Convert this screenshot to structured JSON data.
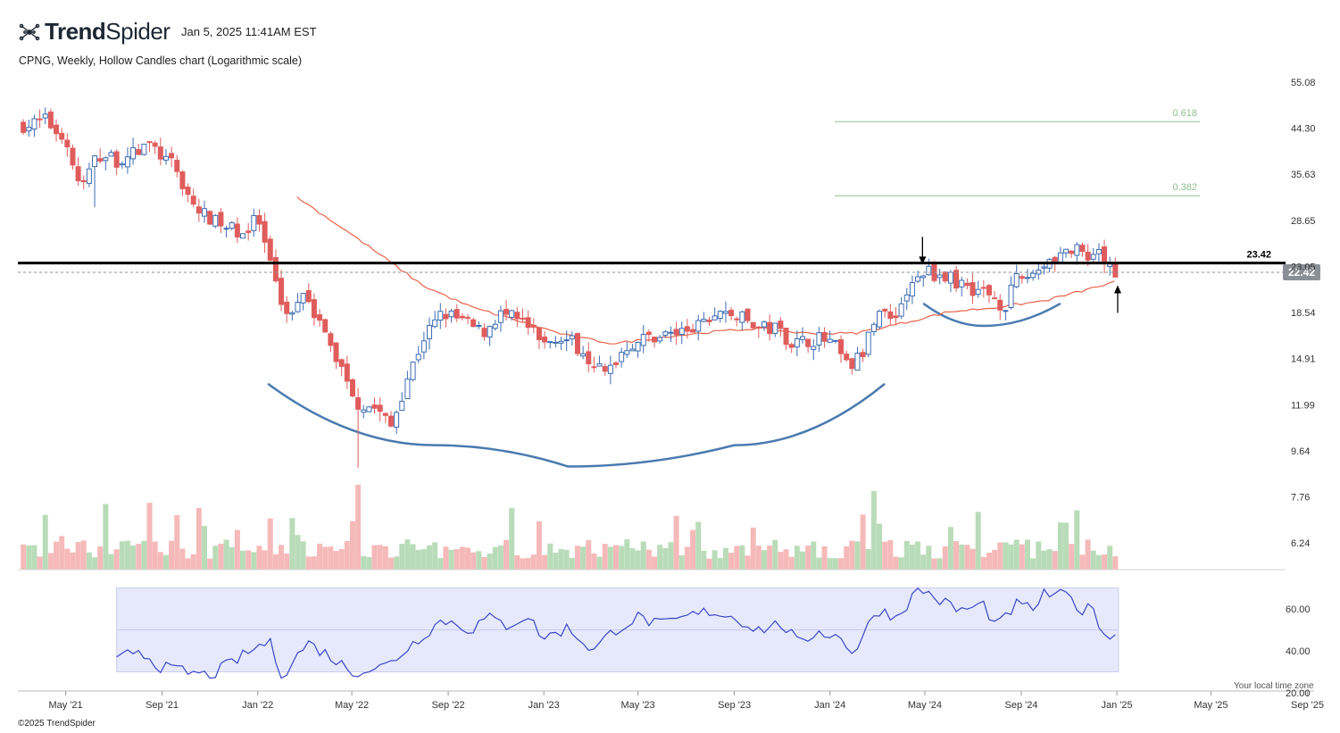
{
  "header": {
    "brand_bold": "Trend",
    "brand_light": "Spider",
    "timestamp": "Jan 5, 2025 11:41AM EST",
    "subtitle": "CPNG, Weekly, Hollow Candles chart (Logarithmic scale)",
    "copyright": "©2025 TrendSpider",
    "timezone_note": "Your local time zone"
  },
  "colors": {
    "up": "#3d6bb3",
    "down": "#e05c5c",
    "vol_up": "#b9dcb8",
    "vol_down": "#f6b9b9",
    "ma": "#e8634a",
    "resistance": "#000000",
    "curve": "#4a7ab0",
    "rsi_line": "#3b46c8",
    "rsi_band": "#e6e9fb",
    "fib": "#8fbf8f",
    "price_badge": "#8a8f96"
  },
  "chart_data": [
    {
      "type": "candlestick",
      "scale": "log",
      "title": "CPNG, Weekly, Hollow Candles chart (Logarithmic scale)",
      "y_ticks": [
        55.08,
        44.3,
        35.63,
        28.65,
        23.05,
        18.54,
        14.91,
        11.99,
        9.64,
        7.76,
        6.24
      ],
      "x_ticks": [
        "May '21",
        "Sep '21",
        "Jan '22",
        "May '22",
        "Sep '22",
        "Jan '23",
        "May '23",
        "Sep '23",
        "Jan '24",
        "May '24",
        "Sep '24",
        "Jan '25",
        "May '25",
        "Sep '25"
      ],
      "last_price": "22.42",
      "resistance": {
        "label": "23.42",
        "value": 23.42
      },
      "fib_levels": [
        {
          "label": "0.618",
          "value": 45.7
        },
        {
          "label": "0.382",
          "value": 32.2
        }
      ],
      "close_path": [
        [
          "2021-03-15",
          45
        ],
        [
          "2021-04-05",
          46
        ],
        [
          "2021-05-01",
          42
        ],
        [
          "2021-05-20",
          33
        ],
        [
          "2021-06-10",
          39
        ],
        [
          "2021-07-10",
          38
        ],
        [
          "2021-08-15",
          41
        ],
        [
          "2021-09-15",
          37
        ],
        [
          "2021-10-15",
          30
        ],
        [
          "2021-11-15",
          28
        ],
        [
          "2021-12-15",
          27
        ],
        [
          "2022-01-01",
          29
        ],
        [
          "2022-01-20",
          22
        ],
        [
          "2022-02-10",
          18
        ],
        [
          "2022-03-01",
          21
        ],
        [
          "2022-03-25",
          17
        ],
        [
          "2022-04-20",
          14
        ],
        [
          "2022-05-10",
          12
        ],
        [
          "2022-06-01",
          11.8
        ],
        [
          "2022-06-20",
          10.8
        ],
        [
          "2022-07-10",
          13.5
        ],
        [
          "2022-08-01",
          16.5
        ],
        [
          "2022-08-25",
          18.5
        ],
        [
          "2022-09-20",
          17.8
        ],
        [
          "2022-10-15",
          16.8
        ],
        [
          "2022-11-05",
          18.4
        ],
        [
          "2022-12-05",
          17.8
        ],
        [
          "2023-01-01",
          15.8
        ],
        [
          "2023-01-20",
          16.8
        ],
        [
          "2023-02-20",
          15.5
        ],
        [
          "2023-03-20",
          13.8
        ],
        [
          "2023-04-15",
          15.8
        ],
        [
          "2023-05-15",
          16.5
        ],
        [
          "2023-06-15",
          16.8
        ],
        [
          "2023-07-15",
          17.2
        ],
        [
          "2023-08-10",
          18.5
        ],
        [
          "2023-09-05",
          18.3
        ],
        [
          "2023-10-01",
          17.2
        ],
        [
          "2023-10-25",
          17.2
        ],
        [
          "2023-11-15",
          16.0
        ],
        [
          "2023-12-15",
          16.4
        ],
        [
          "2024-01-05",
          16.0
        ],
        [
          "2024-01-25",
          14.2
        ],
        [
          "2024-02-15",
          15.5
        ],
        [
          "2024-03-01",
          19.0
        ],
        [
          "2024-03-20",
          18.0
        ],
        [
          "2024-04-10",
          20.5
        ],
        [
          "2024-04-30",
          22.6
        ],
        [
          "2024-05-20",
          22.2
        ],
        [
          "2024-06-10",
          21.5
        ],
        [
          "2024-07-01",
          20.8
        ],
        [
          "2024-07-25",
          20.2
        ],
        [
          "2024-08-10",
          19.0
        ],
        [
          "2024-08-25",
          21.5
        ],
        [
          "2024-09-15",
          22.3
        ],
        [
          "2024-10-01",
          23.5
        ],
        [
          "2024-10-20",
          24.5
        ],
        [
          "2024-11-10",
          24.8
        ],
        [
          "2024-11-25",
          23.5
        ],
        [
          "2024-12-10",
          24.2
        ],
        [
          "2024-12-25",
          22.6
        ],
        [
          "2025-01-03",
          22.42
        ]
      ],
      "moving_average_path": [
        [
          "2022-02-20",
          32.0
        ],
        [
          "2022-05-01",
          26.8
        ],
        [
          "2022-08-01",
          21.0
        ],
        [
          "2022-10-01",
          19.0
        ],
        [
          "2022-12-01",
          17.8
        ],
        [
          "2023-02-01",
          16.6
        ],
        [
          "2023-04-01",
          16.0
        ],
        [
          "2023-06-01",
          16.5
        ],
        [
          "2023-08-01",
          16.9
        ],
        [
          "2023-10-01",
          17.2
        ],
        [
          "2023-12-01",
          16.8
        ],
        [
          "2024-02-01",
          16.8
        ],
        [
          "2024-04-01",
          17.6
        ],
        [
          "2024-06-01",
          18.6
        ],
        [
          "2024-08-01",
          19.0
        ],
        [
          "2024-10-01",
          19.6
        ],
        [
          "2024-12-01",
          20.8
        ],
        [
          "2025-01-03",
          21.5
        ]
      ],
      "volume_note": "volume bars colored by candle direction",
      "annotations": [
        {
          "type": "arrow-down",
          "date": "2024-04-28",
          "value": 26.5
        },
        {
          "type": "arrow-up",
          "date": "2025-01-02",
          "value": 18.5
        },
        {
          "type": "rounding-bottom-curve",
          "path": [
            [
              "2022-01-15",
              13.2
            ],
            [
              "2022-08-15",
              9.9
            ],
            [
              "2023-02-01",
              8.95
            ],
            [
              "2023-09-01",
              9.9
            ],
            [
              "2024-03-10",
              13.2
            ]
          ]
        },
        {
          "type": "rounding-bottom-curve",
          "path": [
            [
              "2024-04-30",
              19.3
            ],
            [
              "2024-07-15",
              17.4
            ],
            [
              "2024-10-20",
              19.3
            ]
          ]
        }
      ]
    },
    {
      "type": "line",
      "name": "RSI",
      "y_ticks": [
        60.0,
        40.0,
        20.0
      ],
      "band": [
        30,
        70
      ],
      "rsi_path": [
        [
          "2021-07-05",
          35
        ],
        [
          "2021-08-01",
          41
        ],
        [
          "2021-09-01",
          32
        ],
        [
          "2021-10-01",
          30
        ],
        [
          "2021-11-01",
          28
        ],
        [
          "2021-12-15",
          38
        ],
        [
          "2022-01-15",
          45
        ],
        [
          "2022-02-01",
          28
        ],
        [
          "2022-03-05",
          44
        ],
        [
          "2022-04-01",
          38
        ],
        [
          "2022-05-01",
          30
        ],
        [
          "2022-06-15",
          33
        ],
        [
          "2022-08-01",
          48
        ],
        [
          "2022-08-25",
          55
        ],
        [
          "2022-10-01",
          50
        ],
        [
          "2022-10-20",
          56
        ],
        [
          "2022-11-15",
          52
        ],
        [
          "2022-12-10",
          57
        ],
        [
          "2023-01-01",
          46
        ],
        [
          "2023-02-01",
          51
        ],
        [
          "2023-03-05",
          40
        ],
        [
          "2023-04-01",
          50
        ],
        [
          "2023-05-01",
          56
        ],
        [
          "2023-06-01",
          52
        ],
        [
          "2023-07-01",
          56
        ],
        [
          "2023-08-01",
          59
        ],
        [
          "2023-09-01",
          56
        ],
        [
          "2023-10-01",
          50
        ],
        [
          "2023-11-01",
          53
        ],
        [
          "2023-11-25",
          42
        ],
        [
          "2023-12-15",
          50
        ],
        [
          "2024-01-15",
          46
        ],
        [
          "2024-02-01",
          39
        ],
        [
          "2024-03-01",
          60
        ],
        [
          "2024-03-25",
          56
        ],
        [
          "2024-04-25",
          70
        ],
        [
          "2024-05-15",
          65
        ],
        [
          "2024-06-15",
          59
        ],
        [
          "2024-07-15",
          62
        ],
        [
          "2024-08-01",
          51
        ],
        [
          "2024-08-25",
          62
        ],
        [
          "2024-09-15",
          60
        ],
        [
          "2024-10-01",
          67
        ],
        [
          "2024-11-01",
          66
        ],
        [
          "2024-11-20",
          58
        ],
        [
          "2024-12-01",
          62
        ],
        [
          "2024-12-15",
          48
        ],
        [
          "2025-01-03",
          46
        ]
      ]
    }
  ]
}
